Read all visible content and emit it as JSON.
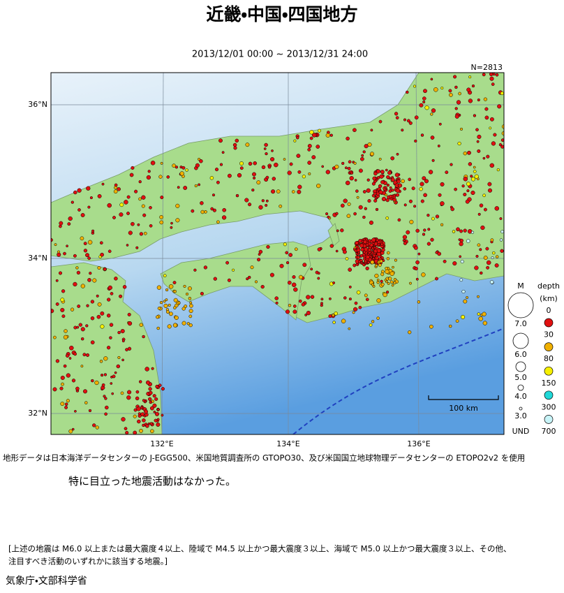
{
  "header": {
    "title": "近畿・中国・四国地方",
    "period": "2013/12/01 00:00 ~ 2013/12/31 24:00",
    "count": "N=2813"
  },
  "map": {
    "lat_labels": [
      "36°N",
      "34°N",
      "32°N"
    ],
    "lon_labels": [
      "132°E",
      "134°E",
      "136°E"
    ],
    "scale": "100 km"
  },
  "legend": {
    "magnitude_title": "M",
    "magnitudes": [
      "7.0",
      "6.0",
      "5.0",
      "4.0",
      "3.0"
    ],
    "undetermined": "UND",
    "depth_title": "depth",
    "depth_unit": "(km)",
    "depths": [
      "0",
      "30",
      "80",
      "150",
      "300",
      "700"
    ],
    "depth_colors": [
      "#e01010",
      "#f0b000",
      "#f6f000",
      "#20d8d8",
      "#c8f4f8"
    ]
  },
  "source_note": "地形データは日本海洋データセンターの J-EGG500、米国地質調査所の GTOPO30、及び米国国立地球物理データセンターの ETOPO2v2 を使用",
  "comment": "特に目立った地震活動はなかった。",
  "criteria": [
    "[上述の地震は M6.0 以上または最大震度４以上、陸域で M4.5 以上かつ最大震度３以上、海域で M5.0 以上かつ最大震度３以上、その他、",
    "注目すべき活動のいずれかに該当する地震。]"
  ],
  "agency": "気象庁・文部科学省"
}
